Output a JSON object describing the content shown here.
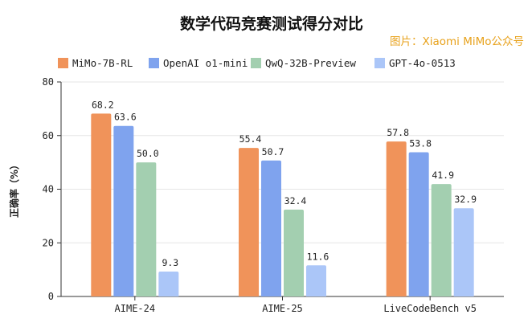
{
  "chart_data": {
    "type": "bar",
    "title": "数学代码竞赛测试得分对比",
    "credit": "图片：Xiaomi MiMo公众号",
    "xlabel": "",
    "ylabel": "正确率（%）",
    "ylim": [
      0,
      80
    ],
    "yticks": [
      0,
      20,
      40,
      60,
      80
    ],
    "grid": true,
    "legend_position": "top",
    "categories": [
      "AIME-24",
      "AIME-25",
      "LiveCodeBench v5"
    ],
    "series": [
      {
        "name": "MiMo-7B-RL",
        "color": "#f0935a",
        "values": [
          68.2,
          55.4,
          57.8
        ],
        "labels": [
          "68.2",
          "55.4",
          "57.8"
        ]
      },
      {
        "name": "OpenAI o1-mini",
        "color": "#7fa3ee",
        "values": [
          63.6,
          50.7,
          53.8
        ],
        "labels": [
          "63.6",
          "50.7",
          "53.8"
        ]
      },
      {
        "name": "QwQ-32B-Preview",
        "color": "#a3cfb0",
        "values": [
          50.0,
          32.4,
          41.9
        ],
        "labels": [
          "50.0",
          "32.4",
          "41.9"
        ]
      },
      {
        "name": "GPT-4o-0513",
        "color": "#abc6f8",
        "values": [
          9.3,
          11.6,
          32.9
        ],
        "labels": [
          "9.3",
          "11.6",
          "32.9"
        ]
      }
    ]
  }
}
